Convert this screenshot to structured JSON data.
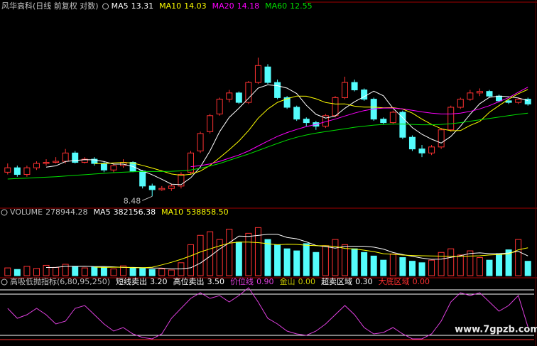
{
  "chart_data": [
    {
      "type": "candlestick",
      "title": "风华高科(日线 前复权 对数)",
      "log_scale": true,
      "ylim": [
        8.1,
        20
      ],
      "up_color": "#ff3232",
      "down_color": "#54fcfc",
      "open": [
        9.5,
        9.7,
        9.4,
        9.7,
        9.9,
        9.95,
        10.0,
        10.4,
        9.95,
        10.1,
        9.9,
        9.6,
        9.8,
        9.95,
        9.55,
        8.9,
        8.75,
        8.8,
        8.9,
        9.5,
        10.5,
        11.5,
        12.5,
        13.4,
        13.8,
        13.2,
        14.5,
        15.6,
        14.5,
        13.5,
        12.9,
        12.2,
        12.0,
        11.8,
        12.4,
        13.5,
        14.5,
        14.0,
        13.4,
        12.2,
        12.0,
        12.6,
        11.2,
        10.6,
        10.4,
        10.7,
        11.6,
        12.9,
        13.4,
        13.8,
        13.9,
        13.6,
        13.3,
        13.2,
        13.4
      ],
      "high": [
        9.9,
        9.8,
        9.8,
        10.0,
        10.1,
        10.2,
        10.6,
        10.5,
        10.2,
        10.2,
        10.0,
        9.9,
        10.1,
        10.0,
        9.6,
        9.0,
        8.9,
        9.0,
        9.5,
        10.5,
        11.5,
        12.5,
        13.5,
        14.0,
        13.9,
        14.6,
        16.3,
        15.8,
        14.7,
        13.6,
        13.0,
        12.3,
        12.1,
        12.5,
        13.6,
        14.9,
        14.7,
        14.1,
        13.5,
        12.3,
        12.7,
        12.7,
        11.3,
        10.8,
        10.8,
        11.7,
        13.0,
        13.5,
        14.0,
        14.1,
        14.0,
        13.7,
        13.4,
        13.5,
        13.5
      ],
      "low": [
        9.4,
        9.3,
        9.3,
        9.6,
        9.8,
        9.9,
        9.9,
        9.9,
        9.9,
        9.8,
        9.5,
        9.5,
        9.7,
        9.5,
        8.8,
        8.48,
        8.7,
        8.7,
        8.8,
        9.4,
        10.4,
        11.4,
        12.4,
        13.2,
        13.1,
        13.1,
        14.4,
        14.4,
        13.4,
        12.8,
        12.1,
        11.8,
        11.6,
        11.7,
        12.3,
        13.4,
        13.9,
        13.3,
        12.1,
        11.9,
        11.9,
        11.1,
        10.5,
        10.2,
        10.3,
        10.6,
        11.5,
        12.8,
        13.3,
        13.6,
        13.5,
        13.2,
        13.1,
        13.1,
        13.0
      ],
      "close": [
        9.7,
        9.4,
        9.7,
        9.9,
        9.95,
        10.0,
        10.4,
        9.95,
        10.1,
        9.9,
        9.6,
        9.8,
        9.95,
        9.55,
        8.9,
        8.75,
        8.8,
        8.9,
        9.4,
        10.4,
        11.4,
        12.4,
        13.4,
        13.8,
        13.2,
        14.5,
        15.7,
        14.5,
        13.5,
        12.9,
        12.2,
        12.0,
        11.8,
        12.4,
        13.5,
        14.5,
        14.0,
        13.4,
        12.2,
        12.0,
        12.6,
        11.2,
        10.6,
        10.4,
        10.7,
        11.6,
        12.9,
        13.4,
        13.8,
        13.9,
        13.6,
        13.3,
        13.2,
        13.4,
        13.1
      ],
      "series": [
        {
          "name": "MA5",
          "color": "#ffffff",
          "values": [
            null,
            null,
            null,
            null,
            9.73,
            9.79,
            9.99,
            10.04,
            10.08,
            10.07,
            9.99,
            9.87,
            9.87,
            9.76,
            9.56,
            9.39,
            9.19,
            8.98,
            8.96,
            9.25,
            9.74,
            10.5,
            11.5,
            12.3,
            12.84,
            13.46,
            14.12,
            14.34,
            14.28,
            14.12,
            13.76,
            13.02,
            12.48,
            12.26,
            12.38,
            12.84,
            13.24,
            13.56,
            13.92,
            13.62,
            12.84,
            12.28,
            11.72,
            11.36,
            11.1,
            10.9,
            11.24,
            11.8,
            12.48,
            13.12,
            13.52,
            13.6,
            13.56,
            13.48,
            13.31
          ]
        },
        {
          "name": "MA10",
          "color": "#ffff00",
          "values": [
            null,
            null,
            null,
            null,
            null,
            null,
            null,
            null,
            null,
            9.9,
            9.89,
            9.93,
            9.95,
            9.92,
            9.81,
            9.69,
            9.56,
            9.42,
            9.36,
            9.41,
            9.55,
            9.81,
            10.17,
            10.56,
            11.0,
            11.56,
            12.25,
            12.79,
            13.2,
            13.43,
            13.6,
            13.59,
            13.43,
            13.19,
            13.1,
            13.11,
            12.97,
            12.91,
            12.91,
            12.87,
            12.88,
            12.79,
            12.55,
            12.2,
            11.9,
            11.66,
            11.55,
            11.56,
            11.84,
            12.07,
            12.6,
            13.0,
            13.4,
            13.75,
            14.03
          ]
        },
        {
          "name": "MA20",
          "color": "#ff00ff",
          "values": [
            null,
            null,
            null,
            null,
            null,
            null,
            null,
            null,
            null,
            null,
            null,
            null,
            null,
            null,
            null,
            null,
            null,
            null,
            null,
            9.75,
            9.8,
            9.88,
            10.0,
            10.15,
            10.3,
            10.5,
            10.75,
            11.0,
            11.25,
            11.45,
            11.62,
            11.78,
            11.9,
            12.05,
            12.2,
            12.38,
            12.55,
            12.7,
            12.8,
            12.85,
            12.85,
            12.8,
            12.72,
            12.62,
            12.55,
            12.5,
            12.5,
            12.55,
            12.65,
            12.8,
            13.0,
            13.25,
            13.5,
            13.85,
            14.18
          ]
        },
        {
          "name": "MA60",
          "color": "#00e000",
          "values": [
            9.2,
            9.22,
            9.24,
            9.26,
            9.28,
            9.3,
            9.33,
            9.36,
            9.39,
            9.42,
            9.45,
            9.48,
            9.5,
            9.52,
            9.53,
            9.53,
            9.53,
            9.54,
            9.56,
            9.6,
            9.68,
            9.78,
            9.9,
            10.05,
            10.2,
            10.35,
            10.52,
            10.7,
            10.88,
            11.05,
            11.2,
            11.32,
            11.42,
            11.5,
            11.58,
            11.66,
            11.74,
            11.8,
            11.86,
            11.9,
            11.92,
            11.92,
            11.9,
            11.88,
            11.88,
            11.9,
            11.94,
            12.0,
            12.08,
            12.16,
            12.24,
            12.32,
            12.4,
            12.48,
            12.55
          ]
        }
      ]
    },
    {
      "type": "bar",
      "ylim": [
        0,
        1100000
      ],
      "series": [
        {
          "name": "VOLUME",
          "color": "#c0c0c0",
          "values": [
            150000,
            120000,
            180000,
            140000,
            200000,
            160000,
            220000,
            180000,
            150000,
            170000,
            160000,
            130000,
            190000,
            150000,
            140000,
            120000,
            130000,
            110000,
            250000,
            600000,
            780000,
            850000,
            700000,
            900000,
            650000,
            820000,
            930000,
            700000,
            600000,
            520000,
            480000,
            620000,
            450000,
            580000,
            700000,
            600000,
            520000,
            450000,
            380000,
            300000,
            420000,
            350000,
            280000,
            250000,
            300000,
            450000,
            520000,
            400000,
            480000,
            350000,
            300000,
            420000,
            500000,
            700000,
            278944.28
          ]
        },
        {
          "name": "MA5",
          "color": "#ffffff",
          "values": [
            null,
            null,
            null,
            null,
            158000,
            160000,
            180000,
            180000,
            182000,
            176000,
            178000,
            170000,
            160000,
            160000,
            154000,
            148000,
            146000,
            130000,
            130000,
            152000,
            244000,
            374000,
            516000,
            636000,
            766000,
            760000,
            778000,
            800000,
            800000,
            740000,
            714000,
            654000,
            584000,
            562000,
            534000,
            566000,
            570000,
            570000,
            552000,
            514000,
            448000,
            410000,
            374000,
            340000,
            316000,
            320000,
            354000,
            386000,
            430000,
            442000,
            426000,
            426000,
            438000,
            470000,
            382156.38
          ]
        },
        {
          "name": "MA10",
          "color": "#ffff00",
          "values": [
            null,
            null,
            null,
            null,
            null,
            null,
            null,
            null,
            null,
            165000,
            160000,
            164000,
            163000,
            156000,
            153000,
            163000,
            209000,
            258000,
            316000,
            383000,
            459000,
            519000,
            578000,
            630000,
            650000,
            650000,
            640000,
            619000,
            598000,
            608000,
            605000,
            588000,
            580000,
            579000,
            565000,
            528000,
            516000,
            494000,
            466000,
            425000,
            414000,
            399000,
            390000,
            385000,
            381000,
            378000,
            372000,
            372000,
            380000,
            385000,
            400000,
            410000,
            420000,
            500000,
            {
              "value": 538858.5,
              "label": "538858.50"
            }
          ]
        }
      ]
    },
    {
      "type": "line",
      "title": "高吸低抛指标(6,80,95,250)",
      "ylim": [
        -0.3,
        3.7
      ],
      "series": [
        {
          "name": "价位线",
          "color": "#e040e0",
          "values": [
            2.2,
            1.5,
            1.75,
            2.2,
            1.75,
            1.1,
            1.3,
            2.2,
            2.4,
            1.75,
            1.1,
            0.6,
            0.85,
            0.4,
            0.15,
            0.05,
            0.4,
            1.5,
            2.2,
            2.9,
            3.3,
            2.9,
            3.1,
            2.65,
            3.1,
            3.65,
            2.65,
            1.5,
            1.1,
            0.6,
            0.4,
            0.3,
            0.6,
            1.1,
            1.75,
            2.4,
            1.75,
            0.85,
            0.4,
            0.5,
            0.85,
            0.4,
            0.05,
            0.05,
            0.4,
            1.3,
            2.65,
            3.3,
            3.1,
            3.3,
            2.65,
            2.0,
            2.4,
            3.1,
            {
              "value": 0.9,
              "label": "0.90"
            }
          ]
        }
      ],
      "levels": [
        {
          "name": "短线卖出",
          "color": "#ffffff",
          "value": {
            "value": 3.2,
            "label": "3.20"
          }
        },
        {
          "name": "高位卖出",
          "color": "#ffffff",
          "value": {
            "value": 3.5,
            "label": "3.50"
          }
        },
        {
          "name": "金山",
          "color": "#c8c800",
          "value": {
            "value": 0,
            "label": "0.00"
          }
        },
        {
          "name": "超卖区域",
          "color": "#ffffff",
          "value": {
            "value": 0.3,
            "label": "0.30"
          }
        },
        {
          "name": "大底区域",
          "color": "#ff3030",
          "value": {
            "value": 0,
            "label": "0.00"
          }
        }
      ]
    }
  ],
  "watermark": "www.7gpzb.com"
}
